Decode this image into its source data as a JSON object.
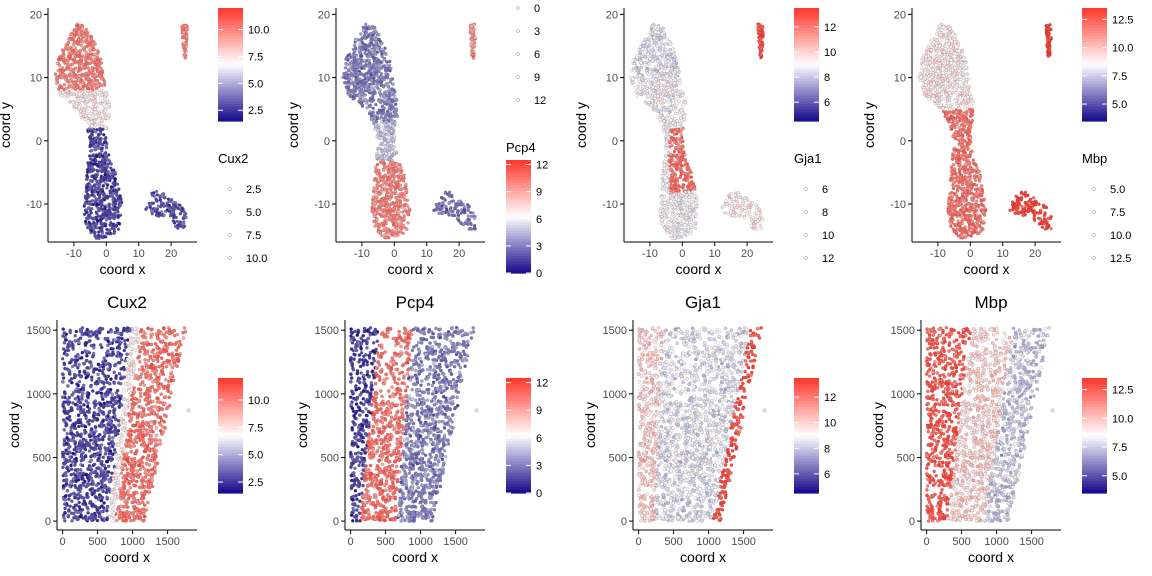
{
  "colors": {
    "low": "#1a0f8c",
    "mid": "#ffffff",
    "high": "#ff3b2f",
    "axis": "#000000",
    "outline": "#3a3a3a"
  },
  "chart_data": [
    {
      "type": "scatter",
      "panel": "umap",
      "gene": "Cux2",
      "title": "",
      "xlabel": "coord x",
      "ylabel": "coord y",
      "xlim": [
        -18,
        28
      ],
      "ylim": [
        -16,
        21
      ],
      "x_ticks": [
        -10,
        0,
        10,
        20
      ],
      "x_tick_labels": [
        "-10",
        "0",
        "10",
        "20"
      ],
      "y_ticks": [
        -10,
        0,
        10,
        20
      ],
      "y_tick_labels": [
        "-10",
        "0",
        "10",
        "20"
      ],
      "color_range": [
        1.5,
        12
      ],
      "color_ticks": [
        2.5,
        5,
        7.5,
        10
      ],
      "color_tick_labels": [
        "2.5",
        "5.0",
        "7.5",
        "10.0"
      ],
      "size_title": "Cux2",
      "size_ticks": [
        2.5,
        5,
        7.5,
        10
      ],
      "size_tick_labels": [
        "2.5",
        "5.0",
        "7.5",
        "10.0"
      ],
      "pattern": "top_high"
    },
    {
      "type": "scatter",
      "panel": "umap",
      "gene": "Pcp4",
      "title": "",
      "xlabel": "coord x",
      "ylabel": "coord y",
      "xlim": [
        -18,
        28
      ],
      "ylim": [
        -16,
        21
      ],
      "x_ticks": [
        -10,
        0,
        10,
        20
      ],
      "x_tick_labels": [
        "-10",
        "0",
        "10",
        "20"
      ],
      "y_ticks": [
        -10,
        0,
        10,
        20
      ],
      "y_tick_labels": [
        "-10",
        "0",
        "10",
        "20"
      ],
      "color_range": [
        0,
        12.5
      ],
      "color_ticks": [
        0,
        3,
        6,
        9,
        12
      ],
      "color_tick_labels": [
        "0",
        "3",
        "6",
        "9",
        "12"
      ],
      "color_title": "Pcp4",
      "size_ticks": [
        0,
        3,
        6,
        9,
        12
      ],
      "size_tick_labels": [
        "0",
        "3",
        "6",
        "9",
        "12"
      ],
      "pattern": "bottom_high"
    },
    {
      "type": "scatter",
      "panel": "umap",
      "gene": "Gja1",
      "title": "",
      "xlabel": "coord x",
      "ylabel": "coord y",
      "xlim": [
        -18,
        28
      ],
      "ylim": [
        -16,
        21
      ],
      "x_ticks": [
        -10,
        0,
        10,
        20
      ],
      "x_tick_labels": [
        "-10",
        "0",
        "10",
        "20"
      ],
      "y_ticks": [
        -10,
        0,
        10,
        20
      ],
      "y_tick_labels": [
        "-10",
        "0",
        "10",
        "20"
      ],
      "color_range": [
        4.5,
        13.5
      ],
      "color_ticks": [
        6,
        8,
        10,
        12
      ],
      "color_tick_labels": [
        "6",
        "8",
        "10",
        "12"
      ],
      "size_title": "Gja1",
      "size_ticks": [
        6,
        8,
        10,
        12
      ],
      "size_tick_labels": [
        "6",
        "8",
        "10",
        "12"
      ],
      "pattern": "mid_high"
    },
    {
      "type": "scatter",
      "panel": "umap",
      "gene": "Mbp",
      "title": "",
      "xlabel": "coord x",
      "ylabel": "coord y",
      "xlim": [
        -18,
        28
      ],
      "ylim": [
        -16,
        21
      ],
      "x_ticks": [
        -10,
        0,
        10,
        20
      ],
      "x_tick_labels": [
        "-10",
        "0",
        "10",
        "20"
      ],
      "y_ticks": [
        -10,
        0,
        10,
        20
      ],
      "y_tick_labels": [
        "-10",
        "0",
        "10",
        "20"
      ],
      "color_range": [
        3.5,
        13.5
      ],
      "color_ticks": [
        5,
        7.5,
        10,
        12.5
      ],
      "color_tick_labels": [
        "5.0",
        "7.5",
        "10.0",
        "12.5"
      ],
      "size_title": "Mbp",
      "size_ticks": [
        5,
        7.5,
        10,
        12.5
      ],
      "size_tick_labels": [
        "5.0",
        "7.5",
        "10.0",
        "12.5"
      ],
      "pattern": "lower_high"
    },
    {
      "type": "scatter",
      "panel": "spatial",
      "gene": "Cux2",
      "title": "Cux2",
      "xlabel": "coord x",
      "ylabel": "coord y",
      "xlim": [
        -80,
        1920
      ],
      "ylim": [
        -70,
        1580
      ],
      "x_ticks": [
        0,
        500,
        1000,
        1500
      ],
      "x_tick_labels": [
        "0",
        "500",
        "1000",
        "1500"
      ],
      "y_ticks": [
        0,
        500,
        1000,
        1500
      ],
      "y_tick_labels": [
        "0",
        "500",
        "1000",
        "1500"
      ],
      "color_range": [
        1.5,
        12
      ],
      "color_ticks": [
        2.5,
        5,
        7.5,
        10
      ],
      "color_tick_labels": [
        "2.5",
        "5.0",
        "7.5",
        "10.0"
      ],
      "pattern": "band_right"
    },
    {
      "type": "scatter",
      "panel": "spatial",
      "gene": "Pcp4",
      "title": "Pcp4",
      "xlabel": "coord x",
      "ylabel": "coord y",
      "xlim": [
        -80,
        1920
      ],
      "ylim": [
        -70,
        1580
      ],
      "x_ticks": [
        0,
        500,
        1000,
        1500
      ],
      "x_tick_labels": [
        "0",
        "500",
        "1000",
        "1500"
      ],
      "y_ticks": [
        0,
        500,
        1000,
        1500
      ],
      "y_tick_labels": [
        "0",
        "500",
        "1000",
        "1500"
      ],
      "color_range": [
        0,
        12.5
      ],
      "color_ticks": [
        0,
        3,
        6,
        9,
        12
      ],
      "color_tick_labels": [
        "0",
        "3",
        "6",
        "9",
        "12"
      ],
      "pattern": "band_mid"
    },
    {
      "type": "scatter",
      "panel": "spatial",
      "gene": "Gja1",
      "title": "Gja1",
      "xlabel": "coord x",
      "ylabel": "coord y",
      "xlim": [
        -80,
        1920
      ],
      "ylim": [
        -70,
        1580
      ],
      "x_ticks": [
        0,
        500,
        1000,
        1500
      ],
      "x_tick_labels": [
        "0",
        "500",
        "1000",
        "1500"
      ],
      "y_ticks": [
        0,
        500,
        1000,
        1500
      ],
      "y_tick_labels": [
        "0",
        "500",
        "1000",
        "1500"
      ],
      "color_range": [
        4.5,
        13.5
      ],
      "color_ticks": [
        6,
        8,
        10,
        12
      ],
      "color_tick_labels": [
        "6",
        "8",
        "10",
        "12"
      ],
      "pattern": "edges"
    },
    {
      "type": "scatter",
      "panel": "spatial",
      "gene": "Mbp",
      "title": "Mbp",
      "xlabel": "coord x",
      "ylabel": "coord y",
      "xlim": [
        -80,
        1920
      ],
      "ylim": [
        -70,
        1580
      ],
      "x_ticks": [
        0,
        500,
        1000,
        1500
      ],
      "x_tick_labels": [
        "0",
        "500",
        "1000",
        "1500"
      ],
      "y_ticks": [
        0,
        500,
        1000,
        1500
      ],
      "y_tick_labels": [
        "0",
        "500",
        "1000",
        "1500"
      ],
      "color_range": [
        3.5,
        13.5
      ],
      "color_ticks": [
        5,
        7.5,
        10,
        12.5
      ],
      "color_tick_labels": [
        "5.0",
        "7.5",
        "10.0",
        "12.5"
      ],
      "pattern": "band_left"
    }
  ]
}
